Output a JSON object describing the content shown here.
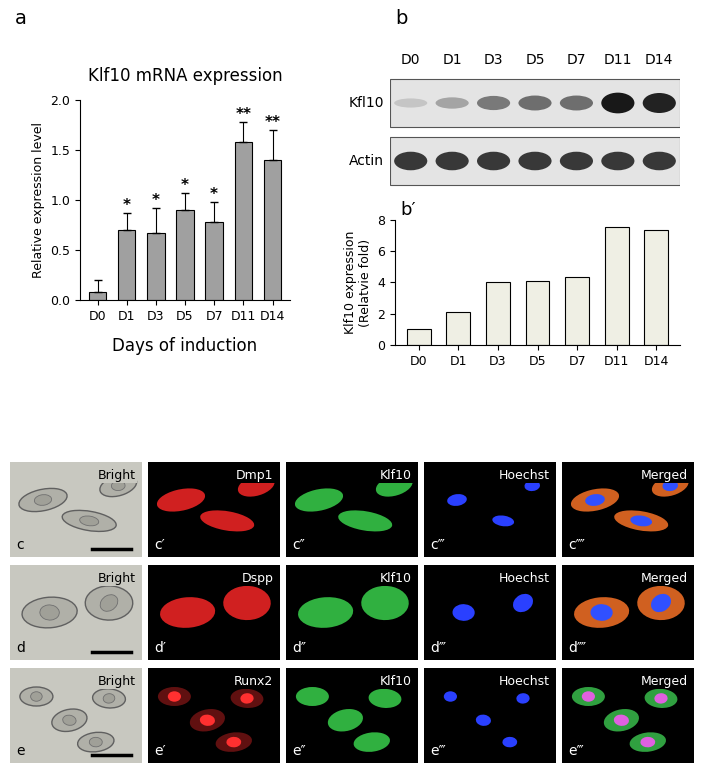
{
  "chart_data": [
    {
      "type": "bar",
      "panel_label": "a",
      "title": "Klf10 mRNA expression",
      "x_label": "Days of induction",
      "y_label": [
        "Relative expression level"
      ],
      "categories": [
        "D0",
        "D1",
        "D3",
        "D5",
        "D7",
        "D11",
        "D14"
      ],
      "values": [
        0.08,
        0.7,
        0.67,
        0.9,
        0.78,
        1.58,
        1.4
      ],
      "errors": [
        0.12,
        0.17,
        0.25,
        0.17,
        0.2,
        0.2,
        0.3
      ],
      "annotations": [
        null,
        "*",
        "*",
        "*",
        "*",
        "**",
        "**"
      ],
      "color": "#a0a0a0",
      "ylim": [
        0,
        2.0
      ],
      "yticks": [
        {
          "value": 0,
          "label": "0.0"
        },
        {
          "value": 0.5,
          "label": "0.5"
        },
        {
          "value": 1.0,
          "label": "1.0"
        },
        {
          "value": 1.5,
          "label": "1.5"
        },
        {
          "value": 2.0,
          "label": "2.0"
        }
      ]
    },
    {
      "type": "bar",
      "panel_label": "b′",
      "y_label": [
        "Klf10 expression",
        "(Relatvie fold)"
      ],
      "categories": [
        "D0",
        "D1",
        "D3",
        "D5",
        "D7",
        "D11",
        "D14"
      ],
      "values": [
        1.0,
        2.1,
        4.0,
        4.1,
        4.35,
        7.55,
        7.35
      ],
      "color": "#efefe4",
      "ylim": [
        0,
        8
      ],
      "yticks": [
        0,
        2,
        4,
        6,
        8
      ]
    }
  ],
  "blot": {
    "panel_label": "b",
    "lanes": [
      "D0",
      "D1",
      "D3",
      "D5",
      "D7",
      "D11",
      "D14"
    ],
    "rows": [
      {
        "name": "Kfl10",
        "intensity": [
          0.15,
          0.3,
          0.5,
          0.55,
          0.55,
          0.95,
          0.9
        ]
      },
      {
        "name": "Actin",
        "intensity": [
          0.8,
          0.8,
          0.8,
          0.8,
          0.8,
          0.8,
          0.8
        ]
      }
    ]
  },
  "images": [
    {
      "panels": [
        {
          "label": "c",
          "name": "Bright"
        },
        {
          "label": "c′",
          "name": "Dmp1"
        },
        {
          "label": "c″",
          "name": "Klf10"
        },
        {
          "label": "c‴",
          "name": "Hoechst"
        },
        {
          "label": "c⁗",
          "name": "Merged"
        }
      ]
    },
    {
      "panels": [
        {
          "label": "d",
          "name": "Bright"
        },
        {
          "label": "d′",
          "name": "Dspp"
        },
        {
          "label": "d″",
          "name": "Klf10"
        },
        {
          "label": "d‴",
          "name": "Hoechst"
        },
        {
          "label": "d⁗",
          "name": "Merged"
        }
      ]
    },
    {
      "panels": [
        {
          "label": "e",
          "name": "Bright"
        },
        {
          "label": "e′",
          "name": "Runx2"
        },
        {
          "label": "e″",
          "name": "Klf10"
        },
        {
          "label": "e‴",
          "name": "Hoechst"
        },
        {
          "label": "e‴",
          "name": "Merged"
        }
      ]
    }
  ]
}
